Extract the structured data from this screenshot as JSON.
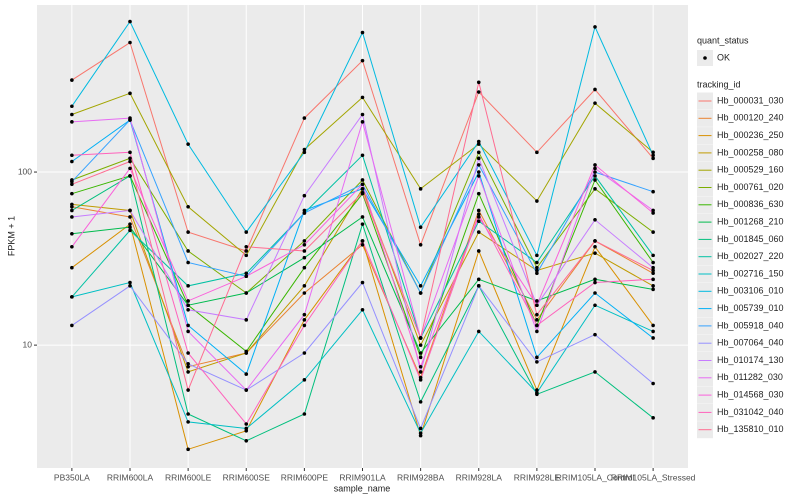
{
  "chart_data": {
    "type": "line",
    "x_label": "sample_name",
    "y_label": "FPKM + 1",
    "categories": [
      "PB350LA",
      "RRIM600LA",
      "RRIM600LE",
      "RRIM600SE",
      "RRIM600PE",
      "RRIM901LA",
      "RRIM928BA",
      "RRIM928LA",
      "RRIM928LE",
      "RRIM105LA_Control",
      "RRIM105LA_Stressed"
    ],
    "ylog": true,
    "ylim": [
      1.95,
      923
    ],
    "yticks": [
      10,
      100
    ],
    "grid": true,
    "status_legend": {
      "title": "quant_status",
      "labels": [
        "OK"
      ]
    },
    "legend_title": "tracking_id",
    "series": [
      {
        "name": "Hb_000031_030",
        "color": "#F8766D",
        "values": [
          340,
          560,
          45,
          35,
          205,
          440,
          38,
          290,
          130,
          300,
          120
        ]
      },
      {
        "name": "Hb_000120_240",
        "color": "#EA8331",
        "values": [
          63,
          55,
          7.5,
          9,
          20,
          38,
          6.5,
          60,
          14,
          40,
          26
        ]
      },
      {
        "name": "Hb_000236_250",
        "color": "#D89000",
        "values": [
          28,
          50,
          2.5,
          3.2,
          14,
          40,
          3.0,
          35,
          5.5,
          37,
          13
        ]
      },
      {
        "name": "Hb_000258_080",
        "color": "#C09B00",
        "values": [
          65,
          60,
          7.0,
          9,
          22,
          80,
          10,
          45,
          27,
          34,
          22
        ]
      },
      {
        "name": "Hb_000529_160",
        "color": "#A3A500",
        "values": [
          215,
          285,
          63,
          33,
          135,
          270,
          80,
          145,
          68,
          250,
          130
        ]
      },
      {
        "name": "Hb_000761_020",
        "color": "#7CAE00",
        "values": [
          90,
          120,
          35,
          20,
          40,
          90,
          20,
          130,
          28,
          80,
          45
        ]
      },
      {
        "name": "Hb_000836_630",
        "color": "#39B600",
        "values": [
          75,
          95,
          17,
          9.2,
          28,
          75,
          8.5,
          75,
          13,
          90,
          30
        ]
      },
      {
        "name": "Hb_001268_210",
        "color": "#00BB4E",
        "values": [
          44,
          48,
          17,
          20,
          32,
          55,
          9,
          24,
          18,
          24,
          21
        ]
      },
      {
        "name": "Hb_001845_060",
        "color": "#00BF7D",
        "values": [
          60,
          95,
          4.0,
          2.8,
          4.0,
          50,
          4.7,
          22,
          5.2,
          7.0,
          3.8
        ]
      },
      {
        "name": "Hb_002027_220",
        "color": "#00C1A3",
        "values": [
          19,
          46,
          22,
          26,
          58,
          125,
          11,
          52,
          30,
          95,
          33
        ]
      },
      {
        "name": "Hb_002716_150",
        "color": "#00BFC4",
        "values": [
          19,
          23,
          3.6,
          3.3,
          6.3,
          16,
          3.1,
          12,
          5.3,
          17,
          12
        ]
      },
      {
        "name": "Hb_003106_010",
        "color": "#00BAE0",
        "values": [
          240,
          740,
          145,
          45,
          130,
          640,
          48,
          150,
          33,
          690,
          125
        ]
      },
      {
        "name": "Hb_005739_010",
        "color": "#00B0F6",
        "values": [
          115,
          200,
          13,
          6.8,
          60,
          80,
          22,
          100,
          8.5,
          20,
          11
        ]
      },
      {
        "name": "Hb_005918_040",
        "color": "#35A2FF",
        "values": [
          88,
          200,
          30,
          25,
          58,
          85,
          20,
          110,
          26,
          100,
          77
        ]
      },
      {
        "name": "Hb_007064_040",
        "color": "#9590FF",
        "values": [
          13,
          22,
          7.8,
          5.5,
          9,
          23,
          3.3,
          22,
          8.0,
          11.5,
          6
        ]
      },
      {
        "name": "Hb_010174_130",
        "color": "#C77CFF",
        "values": [
          55,
          60,
          16,
          14,
          73,
          215,
          7,
          120,
          17,
          53,
          28
        ]
      },
      {
        "name": "Hb_011282_030",
        "color": "#E76BF3",
        "values": [
          195,
          205,
          12,
          5.5,
          15,
          195,
          11,
          95,
          12,
          105,
          60
        ]
      },
      {
        "name": "Hb_014568_030",
        "color": "#FA62DB",
        "values": [
          37,
          105,
          18,
          25,
          38,
          85,
          7.5,
          55,
          17,
          110,
          58
        ]
      },
      {
        "name": "Hb_031042_040",
        "color": "#FF62BC",
        "values": [
          125,
          130,
          9,
          3.5,
          13,
          40,
          6.3,
          57,
          13,
          23,
          24
        ]
      },
      {
        "name": "Hb_135810_010",
        "color": "#FF6C91",
        "values": [
          85,
          115,
          5.5,
          37,
          35,
          76,
          11,
          330,
          15,
          40,
          27
        ]
      }
    ]
  }
}
